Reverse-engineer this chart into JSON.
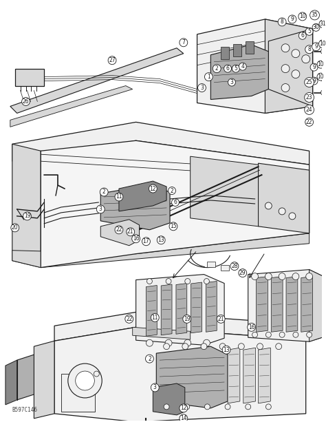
{
  "bg_color": "#ffffff",
  "fig_width": 4.74,
  "fig_height": 6.13,
  "dpi": 100,
  "caption_text": "B597C146",
  "caption_fontsize": 6,
  "line_color": "#1a1a1a",
  "light_gray": "#d8d8d8",
  "mid_gray": "#b0b0b0",
  "dark_gray": "#888888",
  "very_light": "#f0f0f0"
}
